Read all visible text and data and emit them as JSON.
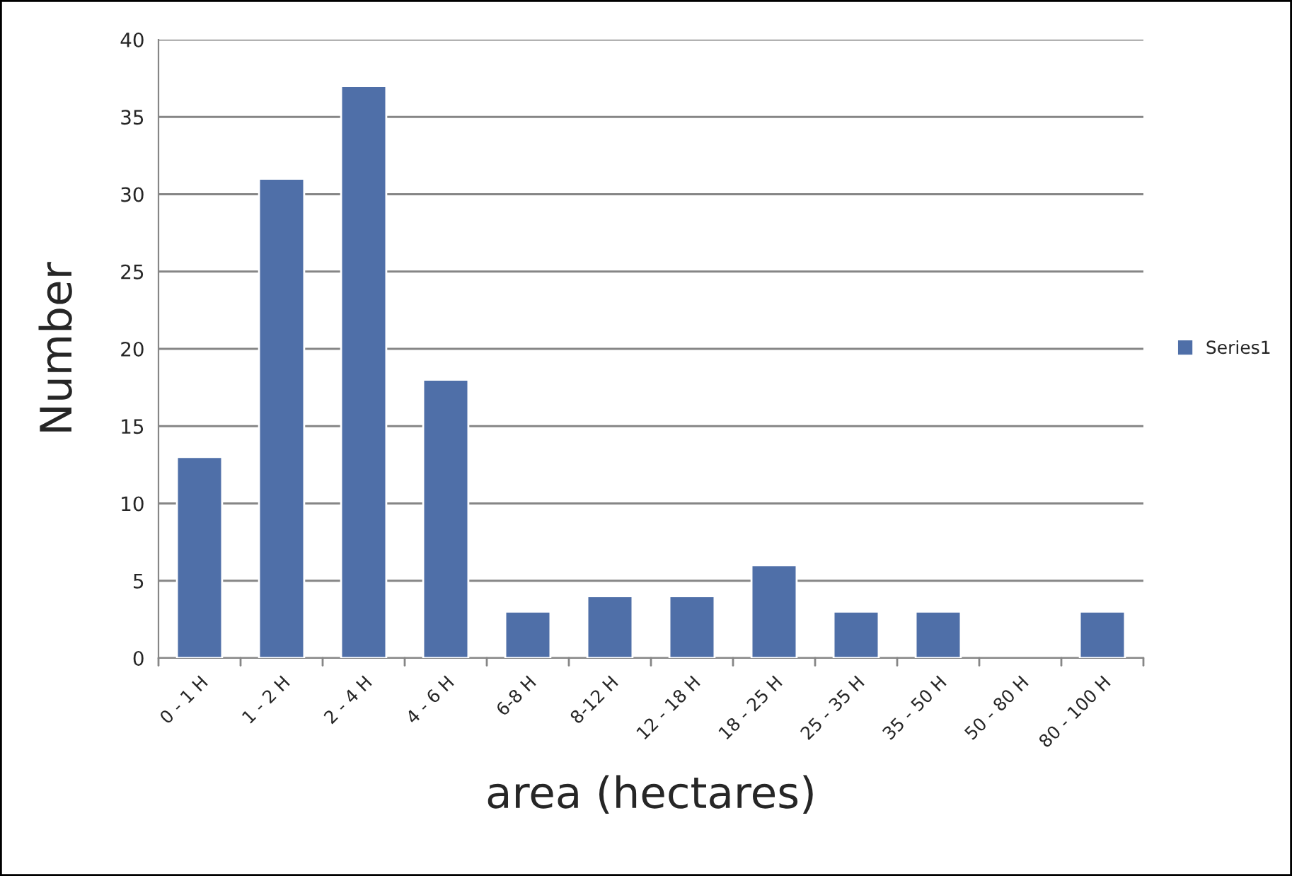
{
  "chart_data": {
    "type": "bar",
    "xlabel": "area (hectares)",
    "ylabel": "Number",
    "categories": [
      "0 - 1 H",
      "1 - 2 H",
      "2 - 4 H",
      "4 - 6 H",
      "6-8 H",
      "8-12 H",
      "12 - 18 H",
      "18 - 25 H",
      "25 - 35 H",
      "35 - 50 H",
      "50 - 80 H",
      "80 - 100 H"
    ],
    "series": [
      {
        "name": "Series1",
        "color": "#4f6fa8",
        "values": [
          13,
          31,
          37,
          18,
          3,
          4,
          4,
          6,
          3,
          3,
          null,
          3
        ]
      }
    ],
    "ylim": [
      0,
      40
    ],
    "yticks": [
      0,
      5,
      10,
      15,
      20,
      25,
      30,
      35,
      40
    ],
    "grid": "y",
    "legend": "right"
  }
}
